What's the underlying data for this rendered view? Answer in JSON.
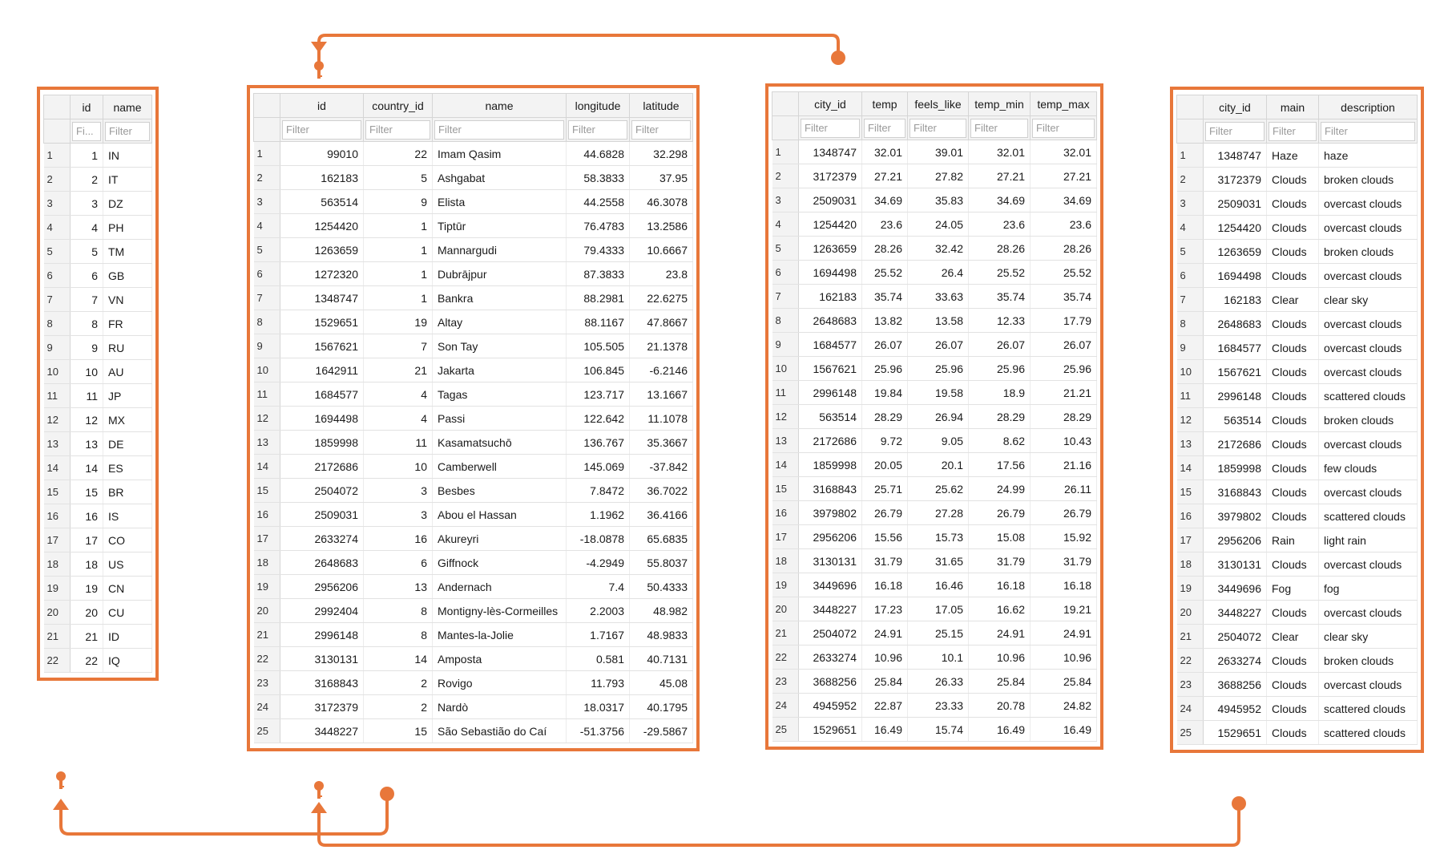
{
  "accent_color": "#E8773A",
  "filter_placeholder": "Filter",
  "tables": {
    "countries": {
      "columns": [
        {
          "label": "id",
          "align": "num",
          "width": 32,
          "filter": "Fi..."
        },
        {
          "label": "name",
          "align": "txt",
          "width": 52,
          "filter": "Filter"
        }
      ],
      "rows": [
        [
          "1",
          "IN"
        ],
        [
          "2",
          "IT"
        ],
        [
          "3",
          "DZ"
        ],
        [
          "4",
          "PH"
        ],
        [
          "5",
          "TM"
        ],
        [
          "6",
          "GB"
        ],
        [
          "7",
          "VN"
        ],
        [
          "8",
          "FR"
        ],
        [
          "9",
          "RU"
        ],
        [
          "10",
          "AU"
        ],
        [
          "11",
          "JP"
        ],
        [
          "12",
          "MX"
        ],
        [
          "13",
          "DE"
        ],
        [
          "14",
          "ES"
        ],
        [
          "15",
          "BR"
        ],
        [
          "16",
          "IS"
        ],
        [
          "17",
          "CO"
        ],
        [
          "18",
          "US"
        ],
        [
          "19",
          "CN"
        ],
        [
          "20",
          "CU"
        ],
        [
          "21",
          "ID"
        ],
        [
          "22",
          "IQ"
        ]
      ]
    },
    "cities": {
      "columns": [
        {
          "label": "id",
          "align": "num",
          "width": 95,
          "filter": "Filter"
        },
        {
          "label": "country_id",
          "align": "num",
          "width": 77,
          "filter": "Filter"
        },
        {
          "label": "name",
          "align": "txt",
          "width": 158,
          "filter": "Filter"
        },
        {
          "label": "longitude",
          "align": "num",
          "width": 70,
          "filter": "Filter"
        },
        {
          "label": "latitude",
          "align": "num",
          "width": 70,
          "filter": "Filter"
        }
      ],
      "rows": [
        [
          "99010",
          "22",
          "Imam Qasim",
          "44.6828",
          "32.298"
        ],
        [
          "162183",
          "5",
          "Ashgabat",
          "58.3833",
          "37.95"
        ],
        [
          "563514",
          "9",
          "Elista",
          "44.2558",
          "46.3078"
        ],
        [
          "1254420",
          "1",
          "Tiptūr",
          "76.4783",
          "13.2586"
        ],
        [
          "1263659",
          "1",
          "Mannargudi",
          "79.4333",
          "10.6667"
        ],
        [
          "1272320",
          "1",
          "Dubrājpur",
          "87.3833",
          "23.8"
        ],
        [
          "1348747",
          "1",
          "Bankra",
          "88.2981",
          "22.6275"
        ],
        [
          "1529651",
          "19",
          "Altay",
          "88.1167",
          "47.8667"
        ],
        [
          "1567621",
          "7",
          "Son Tay",
          "105.505",
          "21.1378"
        ],
        [
          "1642911",
          "21",
          "Jakarta",
          "106.845",
          "-6.2146"
        ],
        [
          "1684577",
          "4",
          "Tagas",
          "123.717",
          "13.1667"
        ],
        [
          "1694498",
          "4",
          "Passi",
          "122.642",
          "11.1078"
        ],
        [
          "1859998",
          "11",
          "Kasamatsuchō",
          "136.767",
          "35.3667"
        ],
        [
          "2172686",
          "10",
          "Camberwell",
          "145.069",
          "-37.842"
        ],
        [
          "2504072",
          "3",
          "Besbes",
          "7.8472",
          "36.7022"
        ],
        [
          "2509031",
          "3",
          "Abou el Hassan",
          "1.1962",
          "36.4166"
        ],
        [
          "2633274",
          "16",
          "Akureyri",
          "-18.0878",
          "65.6835"
        ],
        [
          "2648683",
          "6",
          "Giffnock",
          "-4.2949",
          "55.8037"
        ],
        [
          "2956206",
          "13",
          "Andernach",
          "7.4",
          "50.4333"
        ],
        [
          "2992404",
          "8",
          "Montigny-lès-Cormeilles",
          "2.2003",
          "48.982"
        ],
        [
          "2996148",
          "8",
          "Mantes-la-Jolie",
          "1.7167",
          "48.9833"
        ],
        [
          "3130131",
          "14",
          "Amposta",
          "0.581",
          "40.7131"
        ],
        [
          "3168843",
          "2",
          "Rovigo",
          "11.793",
          "45.08"
        ],
        [
          "3172379",
          "2",
          "Nardò",
          "18.0317",
          "40.1795"
        ],
        [
          "3448227",
          "15",
          "São Sebastião do Caí",
          "-51.3756",
          "-29.5867"
        ]
      ]
    },
    "temperatures": {
      "columns": [
        {
          "label": "city_id",
          "align": "num",
          "width": 70,
          "filter": "Filter"
        },
        {
          "label": "temp",
          "align": "num",
          "width": 48,
          "filter": "Filter"
        },
        {
          "label": "feels_like",
          "align": "num",
          "width": 67,
          "filter": "Filter"
        },
        {
          "label": "temp_min",
          "align": "num",
          "width": 68,
          "filter": "Filter"
        },
        {
          "label": "temp_max",
          "align": "num",
          "width": 74,
          "filter": "Filter"
        }
      ],
      "rows": [
        [
          "1348747",
          "32.01",
          "39.01",
          "32.01",
          "32.01"
        ],
        [
          "3172379",
          "27.21",
          "27.82",
          "27.21",
          "27.21"
        ],
        [
          "2509031",
          "34.69",
          "35.83",
          "34.69",
          "34.69"
        ],
        [
          "1254420",
          "23.6",
          "24.05",
          "23.6",
          "23.6"
        ],
        [
          "1263659",
          "28.26",
          "32.42",
          "28.26",
          "28.26"
        ],
        [
          "1694498",
          "25.52",
          "26.4",
          "25.52",
          "25.52"
        ],
        [
          "162183",
          "35.74",
          "33.63",
          "35.74",
          "35.74"
        ],
        [
          "2648683",
          "13.82",
          "13.58",
          "12.33",
          "17.79"
        ],
        [
          "1684577",
          "26.07",
          "26.07",
          "26.07",
          "26.07"
        ],
        [
          "1567621",
          "25.96",
          "25.96",
          "25.96",
          "25.96"
        ],
        [
          "2996148",
          "19.84",
          "19.58",
          "18.9",
          "21.21"
        ],
        [
          "563514",
          "28.29",
          "26.94",
          "28.29",
          "28.29"
        ],
        [
          "2172686",
          "9.72",
          "9.05",
          "8.62",
          "10.43"
        ],
        [
          "1859998",
          "20.05",
          "20.1",
          "17.56",
          "21.16"
        ],
        [
          "3168843",
          "25.71",
          "25.62",
          "24.99",
          "26.11"
        ],
        [
          "3979802",
          "26.79",
          "27.28",
          "26.79",
          "26.79"
        ],
        [
          "2956206",
          "15.56",
          "15.73",
          "15.08",
          "15.92"
        ],
        [
          "3130131",
          "31.79",
          "31.65",
          "31.79",
          "31.79"
        ],
        [
          "3449696",
          "16.18",
          "16.46",
          "16.18",
          "16.18"
        ],
        [
          "3448227",
          "17.23",
          "17.05",
          "16.62",
          "19.21"
        ],
        [
          "2504072",
          "24.91",
          "25.15",
          "24.91",
          "24.91"
        ],
        [
          "2633274",
          "10.96",
          "10.1",
          "10.96",
          "10.96"
        ],
        [
          "3688256",
          "25.84",
          "26.33",
          "25.84",
          "25.84"
        ],
        [
          "4945952",
          "22.87",
          "23.33",
          "20.78",
          "24.82"
        ],
        [
          "1529651",
          "16.49",
          "15.74",
          "16.49",
          "16.49"
        ]
      ]
    },
    "weather": {
      "columns": [
        {
          "label": "city_id",
          "align": "num",
          "width": 70,
          "filter": "Filter"
        },
        {
          "label": "main",
          "align": "txt",
          "width": 56,
          "filter": "Filter"
        },
        {
          "label": "description",
          "align": "txt",
          "width": 114,
          "filter": "Filter"
        }
      ],
      "rows": [
        [
          "1348747",
          "Haze",
          "haze"
        ],
        [
          "3172379",
          "Clouds",
          "broken clouds"
        ],
        [
          "2509031",
          "Clouds",
          "overcast clouds"
        ],
        [
          "1254420",
          "Clouds",
          "overcast clouds"
        ],
        [
          "1263659",
          "Clouds",
          "broken clouds"
        ],
        [
          "1694498",
          "Clouds",
          "overcast clouds"
        ],
        [
          "162183",
          "Clear",
          "clear sky"
        ],
        [
          "2648683",
          "Clouds",
          "overcast clouds"
        ],
        [
          "1684577",
          "Clouds",
          "overcast clouds"
        ],
        [
          "1567621",
          "Clouds",
          "overcast clouds"
        ],
        [
          "2996148",
          "Clouds",
          "scattered clouds"
        ],
        [
          "563514",
          "Clouds",
          "broken clouds"
        ],
        [
          "2172686",
          "Clouds",
          "overcast clouds"
        ],
        [
          "1859998",
          "Clouds",
          "few clouds"
        ],
        [
          "3168843",
          "Clouds",
          "overcast clouds"
        ],
        [
          "3979802",
          "Clouds",
          "scattered clouds"
        ],
        [
          "2956206",
          "Rain",
          "light rain"
        ],
        [
          "3130131",
          "Clouds",
          "overcast clouds"
        ],
        [
          "3449696",
          "Fog",
          "fog"
        ],
        [
          "3448227",
          "Clouds",
          "overcast clouds"
        ],
        [
          "2504072",
          "Clear",
          "clear sky"
        ],
        [
          "2633274",
          "Clouds",
          "broken clouds"
        ],
        [
          "3688256",
          "Clouds",
          "overcast clouds"
        ],
        [
          "4945952",
          "Clouds",
          "scattered clouds"
        ],
        [
          "1529651",
          "Clouds",
          "scattered clouds"
        ]
      ]
    }
  }
}
